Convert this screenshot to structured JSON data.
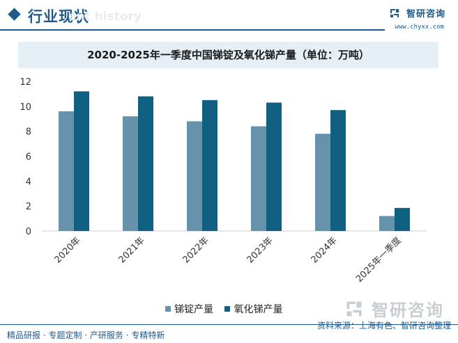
{
  "header": {
    "section_title": "行业现状",
    "section_subtitle": "ent history",
    "brand_name": "智研咨询",
    "brand_url": "www.chyxx.com"
  },
  "watermark": {
    "text": "智研咨询"
  },
  "footer": {
    "left": "精品研报 · 专题定制 · 产研服务 · 专精特新",
    "source": "资料来源：上海有色、智研咨询整理"
  },
  "colors": {
    "accent": "#1f5a8c",
    "series1": "#6693ab",
    "series2": "#0e5f80"
  },
  "chart_data": {
    "type": "bar",
    "title": "2020-2025年一季度中国锑锭及氧化锑产量（单位：万吨）",
    "categories": [
      "2020年",
      "2021年",
      "2022年",
      "2023年",
      "2024年",
      "2025年一季度"
    ],
    "series": [
      {
        "name": "锑锭产量",
        "values": [
          9.6,
          9.2,
          8.8,
          8.4,
          7.8,
          1.2
        ]
      },
      {
        "name": "氧化锑产量",
        "values": [
          11.2,
          10.8,
          10.5,
          10.3,
          9.7,
          1.85
        ]
      }
    ],
    "ylim": [
      0,
      12
    ],
    "yticks": [
      0,
      2,
      4,
      6,
      8,
      10,
      12
    ],
    "ytick_labels": [
      "0",
      "2",
      "4",
      "6",
      "8",
      "10",
      "12"
    ],
    "grid": false,
    "legend_position": "bottom-center",
    "xlabel": "",
    "ylabel": ""
  }
}
